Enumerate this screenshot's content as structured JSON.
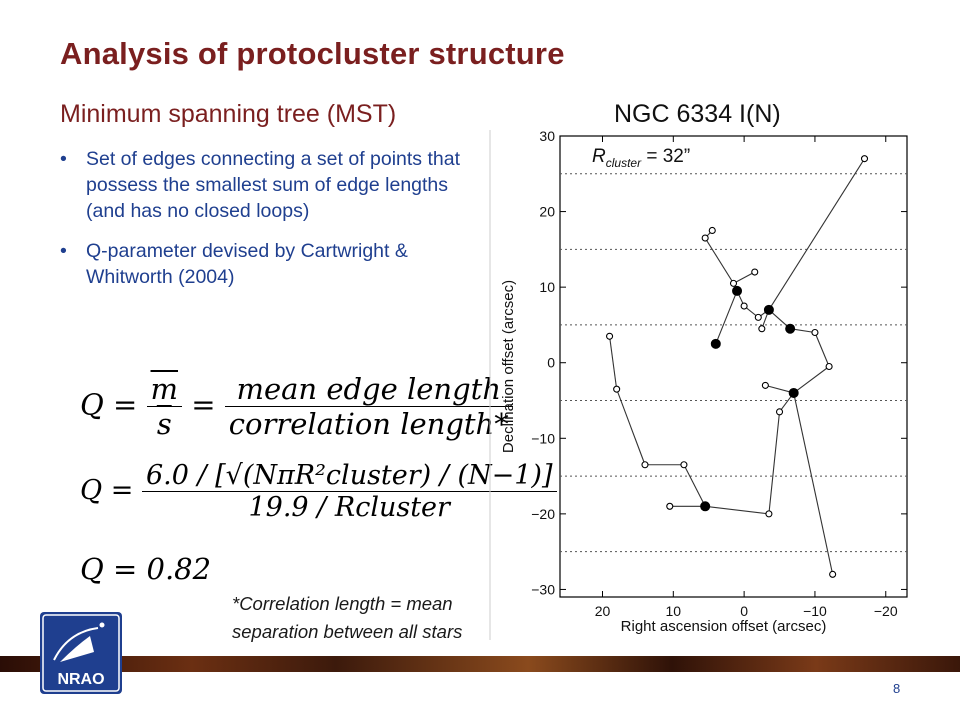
{
  "slide": {
    "title": "Analysis of protocluster structure",
    "subtitle": "Minimum spanning tree (MST)",
    "bullets": [
      "Set of edges connecting a set of points that possess the smallest sum of edge lengths (and has no closed loops)",
      "Q-parameter devised by Cartwright & Whitworth (2004)"
    ],
    "equations": {
      "eq1_lhs": "Q =",
      "eq1_num": "m",
      "eq1_den": "s",
      "eq1_mid": "=",
      "eq1_frac_num": "mean edge length",
      "eq1_frac_den": "correlation length*",
      "eq2_lhs": "Q =",
      "eq2_num": "6.0 / [√(NπR²cluster) / (N−1)]",
      "eq2_den": "19.9 / Rcluster",
      "eq3": "Q = 0.82"
    },
    "footnote_line1": "*Correlation length = mean",
    "footnote_line2": "separation between all stars",
    "page_number": "8",
    "logo_text": "NRAO"
  },
  "chart_data": {
    "type": "scatter",
    "title": "NGC 6334 I(N)",
    "annotation": "R_cluster = 32”",
    "annotation_parts": {
      "R": "R",
      "sub": "cluster",
      "value": " = 32”"
    },
    "xlabel": "Right ascension offset (arcsec)",
    "ylabel": "Declination offset (arcsec)",
    "xlim": [
      26,
      -23
    ],
    "ylim": [
      -31,
      30
    ],
    "x_ticks": [
      20,
      10,
      0,
      -10,
      -20
    ],
    "x_tick_labels": [
      "20",
      "10",
      "0",
      "−10",
      "−20"
    ],
    "y_ticks": [
      -30,
      -20,
      -10,
      0,
      10,
      20,
      30
    ],
    "y_tick_labels": [
      "−30",
      "−20",
      "−10",
      "0",
      "10",
      "20",
      "30"
    ],
    "grid": "horizontal dotted lines at y = -25, -15, -5, 5, 15, 25",
    "grid_y": [
      -25,
      -15,
      -5,
      5,
      15,
      25
    ],
    "points": [
      {
        "x": 19,
        "y": 3.5,
        "filled": false
      },
      {
        "x": 18,
        "y": -3.5,
        "filled": false
      },
      {
        "x": 14,
        "y": -13.5,
        "filled": false
      },
      {
        "x": 8.5,
        "y": -13.5,
        "filled": false
      },
      {
        "x": 5.5,
        "y": -19,
        "filled": true
      },
      {
        "x": 10.5,
        "y": -19,
        "filled": false
      },
      {
        "x": -3.5,
        "y": -20,
        "filled": false
      },
      {
        "x": -5,
        "y": -6.5,
        "filled": false
      },
      {
        "x": -7,
        "y": -4,
        "filled": true
      },
      {
        "x": -12.5,
        "y": -28,
        "filled": false
      },
      {
        "x": -3,
        "y": -3,
        "filled": false
      },
      {
        "x": -12,
        "y": -0.5,
        "filled": false
      },
      {
        "x": -10,
        "y": 4,
        "filled": false
      },
      {
        "x": -6.5,
        "y": 4.5,
        "filled": true
      },
      {
        "x": -3.5,
        "y": 7,
        "filled": true
      },
      {
        "x": -2,
        "y": 6,
        "filled": false
      },
      {
        "x": -2.5,
        "y": 4.5,
        "filled": false
      },
      {
        "x": 0,
        "y": 7.5,
        "filled": false
      },
      {
        "x": 1,
        "y": 9.5,
        "filled": true
      },
      {
        "x": 1.5,
        "y": 10.5,
        "filled": false
      },
      {
        "x": -1.5,
        "y": 12,
        "filled": false
      },
      {
        "x": 5.5,
        "y": 16.5,
        "filled": false
      },
      {
        "x": 4.5,
        "y": 17.5,
        "filled": false
      },
      {
        "x": 4,
        "y": 2.5,
        "filled": true
      },
      {
        "x": -17,
        "y": 27,
        "filled": false
      }
    ],
    "edges": [
      [
        0,
        1
      ],
      [
        1,
        2
      ],
      [
        2,
        3
      ],
      [
        3,
        4
      ],
      [
        4,
        5
      ],
      [
        4,
        6
      ],
      [
        6,
        7
      ],
      [
        7,
        8
      ],
      [
        8,
        9
      ],
      [
        8,
        10
      ],
      [
        8,
        11
      ],
      [
        11,
        12
      ],
      [
        12,
        13
      ],
      [
        13,
        14
      ],
      [
        14,
        15
      ],
      [
        14,
        16
      ],
      [
        15,
        17
      ],
      [
        17,
        18
      ],
      [
        18,
        19
      ],
      [
        19,
        20
      ],
      [
        19,
        21
      ],
      [
        21,
        22
      ],
      [
        18,
        23
      ],
      [
        14,
        24
      ]
    ]
  }
}
